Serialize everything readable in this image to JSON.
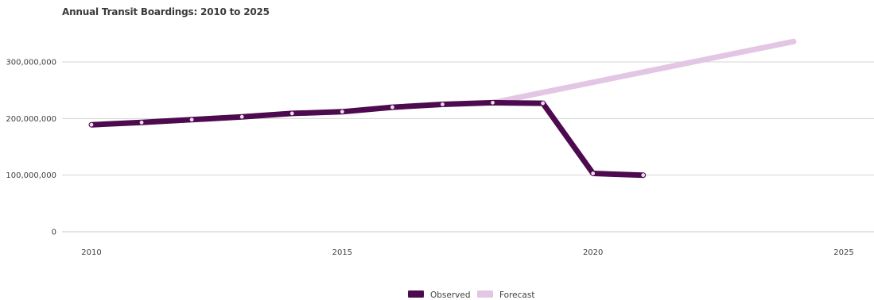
{
  "chart_data": {
    "type": "line",
    "title": "Annual Transit Boardings: 2010 to 2025",
    "xlabel": "",
    "ylabel": "",
    "xlim": [
      2010,
      2025
    ],
    "ylim": [
      0,
      300000000
    ],
    "x_ticks": [
      2010,
      2015,
      2020,
      2025
    ],
    "x_tick_labels": [
      "2010",
      "2015",
      "2020",
      "2025"
    ],
    "y_ticks": [
      0,
      100000000,
      200000000,
      300000000
    ],
    "y_tick_labels": [
      "0",
      "100,000,000",
      "200,000,000",
      "300,000,000"
    ],
    "grid": "horizontal",
    "legend_position": "bottom",
    "series": [
      {
        "name": "Observed",
        "color": "#4d0a4f",
        "x": [
          2010,
          2011,
          2012,
          2013,
          2014,
          2015,
          2016,
          2017,
          2018,
          2019,
          2020,
          2021
        ],
        "values": [
          189000000,
          193000000,
          198000000,
          203000000,
          209000000,
          212000000,
          220000000,
          225000000,
          228000000,
          227000000,
          103000000,
          100000000
        ]
      },
      {
        "name": "Forecast",
        "color": "#e2c6e3",
        "x": [
          2018,
          2024
        ],
        "values": [
          228000000,
          336000000
        ]
      }
    ],
    "marker_color": "#f2dcf2"
  }
}
